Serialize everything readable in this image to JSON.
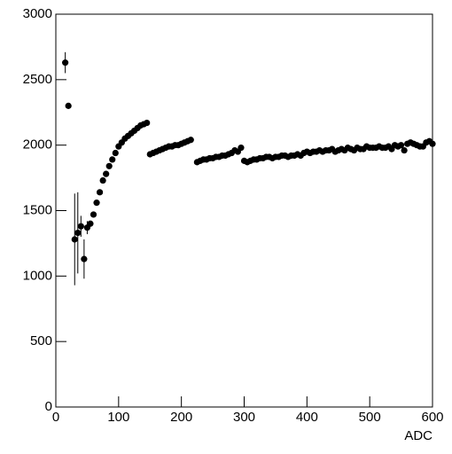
{
  "chart_data": {
    "type": "scatter",
    "x_label": "ADC",
    "xlim": [
      0,
      600
    ],
    "ylim": [
      0,
      3000
    ],
    "xticks": [
      0,
      100,
      200,
      300,
      400,
      500,
      600
    ],
    "yticks": [
      0,
      500,
      1000,
      1500,
      2000,
      2500,
      3000
    ],
    "color": "#000000",
    "x": [
      15,
      20,
      30,
      35,
      40,
      45,
      50,
      55,
      60,
      65,
      70,
      75,
      80,
      85,
      90,
      95,
      100,
      105,
      110,
      115,
      120,
      125,
      130,
      135,
      140,
      145,
      150,
      155,
      160,
      165,
      170,
      175,
      180,
      185,
      190,
      195,
      200,
      205,
      210,
      215,
      225,
      230,
      235,
      240,
      245,
      250,
      255,
      260,
      265,
      270,
      275,
      280,
      285,
      290,
      295,
      300,
      305,
      310,
      315,
      320,
      325,
      330,
      335,
      340,
      345,
      350,
      355,
      360,
      365,
      370,
      375,
      380,
      385,
      390,
      395,
      400,
      405,
      410,
      415,
      420,
      425,
      430,
      435,
      440,
      445,
      450,
      455,
      460,
      465,
      470,
      475,
      480,
      485,
      490,
      495,
      500,
      505,
      510,
      515,
      520,
      525,
      530,
      535,
      540,
      545,
      550,
      555,
      560,
      565,
      570,
      575,
      580,
      585,
      590,
      595,
      600
    ],
    "values": [
      2630,
      2300,
      1280,
      1330,
      1380,
      1130,
      1370,
      1400,
      1470,
      1560,
      1640,
      1730,
      1780,
      1840,
      1890,
      1940,
      1990,
      2020,
      2050,
      2070,
      2090,
      2110,
      2130,
      2150,
      2160,
      2170,
      1930,
      1940,
      1950,
      1960,
      1970,
      1980,
      1990,
      1990,
      2000,
      2000,
      2010,
      2020,
      2030,
      2040,
      1870,
      1880,
      1890,
      1890,
      1900,
      1900,
      1910,
      1910,
      1920,
      1920,
      1930,
      1940,
      1960,
      1950,
      1980,
      1880,
      1870,
      1880,
      1890,
      1890,
      1900,
      1900,
      1910,
      1910,
      1900,
      1910,
      1910,
      1920,
      1920,
      1910,
      1920,
      1920,
      1930,
      1920,
      1940,
      1950,
      1940,
      1950,
      1950,
      1960,
      1950,
      1960,
      1960,
      1970,
      1950,
      1960,
      1970,
      1960,
      1980,
      1970,
      1960,
      1980,
      1970,
      1970,
      1990,
      1980,
      1980,
      1980,
      1990,
      1980,
      1980,
      1990,
      1970,
      2000,
      1990,
      2000,
      1960,
      2010,
      2020,
      2010,
      2000,
      1990,
      1990,
      2020,
      2030,
      2010
    ],
    "errors": [
      80,
      null,
      350,
      310,
      80,
      150,
      50,
      null,
      null,
      null,
      null,
      null,
      null,
      null,
      null,
      null,
      null,
      null,
      null,
      null,
      null,
      null,
      null,
      null,
      null,
      null,
      null,
      null,
      null,
      null,
      null,
      null,
      null,
      null,
      null,
      null,
      null,
      null,
      null,
      null,
      null,
      null,
      null,
      null,
      null,
      null,
      null,
      null,
      null,
      null,
      null,
      null,
      null,
      null,
      null,
      null,
      null,
      null,
      null,
      null,
      null,
      null,
      null,
      null,
      null,
      null,
      null,
      null,
      null,
      null,
      null,
      null,
      null,
      null,
      null,
      null,
      null,
      null,
      null,
      null,
      null,
      null,
      null,
      null,
      null,
      null,
      null,
      null,
      null,
      null,
      null,
      null,
      null,
      null,
      null,
      null,
      null,
      null,
      null,
      null,
      null,
      null,
      null,
      null,
      null,
      null,
      null,
      null,
      null,
      null,
      null,
      null,
      null,
      null,
      null,
      null
    ]
  }
}
